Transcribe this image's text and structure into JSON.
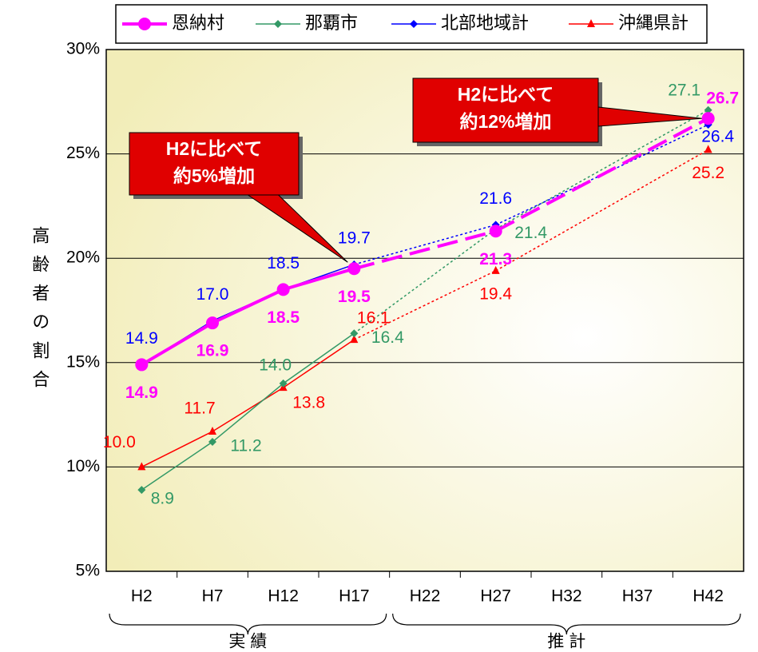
{
  "chart_data": {
    "type": "line",
    "categories": [
      "H2",
      "H7",
      "H12",
      "H17",
      "H22",
      "H27",
      "H32",
      "H37",
      "H42"
    ],
    "series": [
      {
        "name": "恩納村",
        "color": "#ff00ff",
        "marker": "circle",
        "values": [
          14.9,
          16.9,
          18.5,
          19.5,
          null,
          21.3,
          null,
          null,
          26.7
        ],
        "value_labels": [
          "14.9",
          "16.9",
          "18.5",
          "19.5",
          null,
          "21.3",
          null,
          null,
          "26.7"
        ]
      },
      {
        "name": "那覇市",
        "color": "#339966",
        "marker": "diamond",
        "values": [
          8.9,
          11.2,
          14.0,
          16.4,
          null,
          21.4,
          null,
          null,
          27.1
        ],
        "value_labels": [
          "8.9",
          "11.2",
          "14.0",
          "16.4",
          null,
          "21.4",
          null,
          null,
          "27.1"
        ]
      },
      {
        "name": "北部地域計",
        "color": "#0000ff",
        "marker": "diamond",
        "values": [
          14.9,
          17.0,
          18.5,
          19.7,
          null,
          21.6,
          null,
          null,
          26.4
        ],
        "value_labels": [
          "14.9",
          "17.0",
          "18.5",
          "19.7",
          null,
          "21.6",
          null,
          null,
          "26.4"
        ]
      },
      {
        "name": "沖縄県計",
        "color": "#ff0000",
        "marker": "triangle",
        "values": [
          10.0,
          11.7,
          13.8,
          16.1,
          null,
          19.4,
          null,
          null,
          25.2
        ],
        "value_labels": [
          "10.0",
          "11.7",
          "13.8",
          "16.1",
          null,
          "19.4",
          null,
          null,
          "25.2"
        ]
      }
    ],
    "ylabel": "高齢者の割合",
    "ylim": [
      5,
      30
    ],
    "yticks": [
      {
        "value": 5,
        "label": "5%"
      },
      {
        "value": 10,
        "label": "10%"
      },
      {
        "value": 15,
        "label": "15%"
      },
      {
        "value": 20,
        "label": "20%"
      },
      {
        "value": 25,
        "label": "25%"
      },
      {
        "value": 30,
        "label": "30%"
      }
    ],
    "grid": true,
    "legend": "top",
    "periods": [
      {
        "label": "実 績",
        "from": "H2",
        "to": "H17",
        "style": "solid"
      },
      {
        "label": "推 計",
        "from": "H22",
        "to": "H42",
        "style": "dashed"
      }
    ],
    "annotations": [
      {
        "lines": [
          "H2に比べて",
          "約5%増加"
        ],
        "target": "H17"
      },
      {
        "lines": [
          "H2に比べて",
          "約12%増加"
        ],
        "target": "H42"
      }
    ]
  }
}
